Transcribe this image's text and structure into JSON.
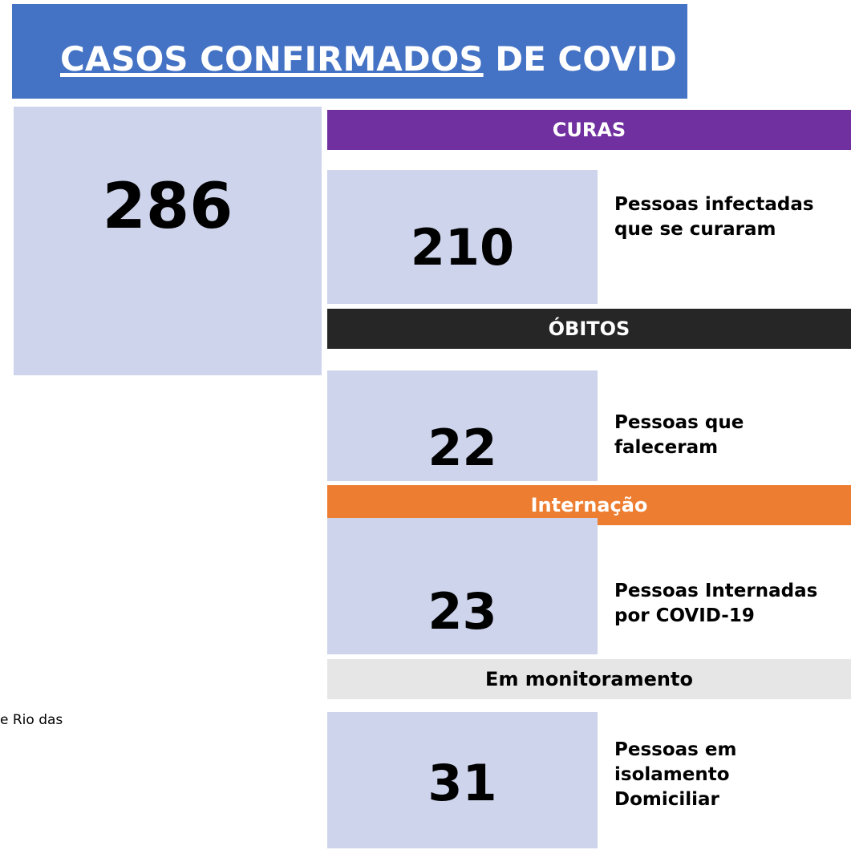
{
  "header": {
    "title_underlined": "CASOS CONFIRMADOS",
    "title_rest": "DE COVID"
  },
  "total": "286",
  "sections": [
    {
      "title": "CURAS",
      "value": "210",
      "lines": [
        "Pessoas infectadas",
        "que se curaram"
      ]
    },
    {
      "title": "ÓBITOS",
      "value": "22",
      "lines": [
        "Pessoas que",
        "faleceram"
      ]
    },
    {
      "title": "Internação",
      "value": "23",
      "lines": [
        "Pessoas Internadas",
        "por COVID-19"
      ]
    },
    {
      "title": "Em monitoramento",
      "value": "31",
      "lines": [
        "Pessoas em",
        "isolamento",
        "Domiciliar"
      ]
    }
  ],
  "side_text": "e Rio das"
}
